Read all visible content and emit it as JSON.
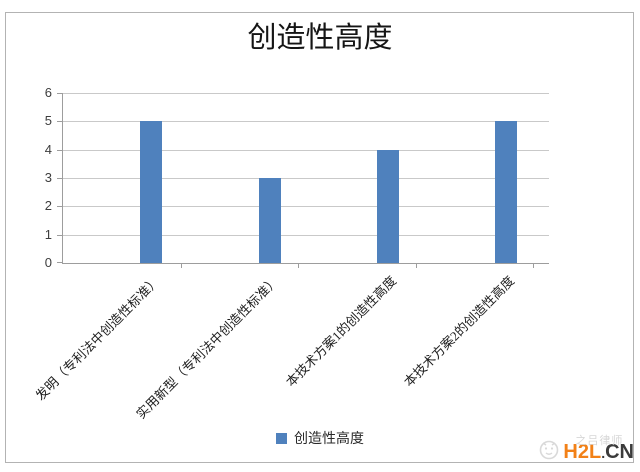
{
  "chart_data": {
    "type": "bar",
    "title": "创造性高度",
    "categories": [
      "发明（专利法中创造性标准）",
      "实用新型（专利法中创造性标准）",
      "本技术方案1的创造性高度",
      "本技术方案2的创造性高度"
    ],
    "values": [
      5,
      3,
      4,
      5
    ],
    "xlabel": "",
    "ylabel": "",
    "ylim": [
      0,
      6
    ],
    "yticks": [
      0,
      1,
      2,
      3,
      4,
      5,
      6
    ],
    "grid": true,
    "legend_position": "bottom",
    "bar_color": "#4F81BD",
    "gridline_color": "#c9c9c9",
    "axis_color": "#9d9d9d"
  },
  "legend": {
    "label": "创造性高度",
    "marker_color": "#4F81BD"
  },
  "watermark": {
    "faint_text": "之吕律师",
    "brand_primary": "H2L",
    "brand_dot": ".",
    "brand_suffix": "CN",
    "primary_color": "#f28118",
    "suffix_color": "#3b3b3b"
  }
}
